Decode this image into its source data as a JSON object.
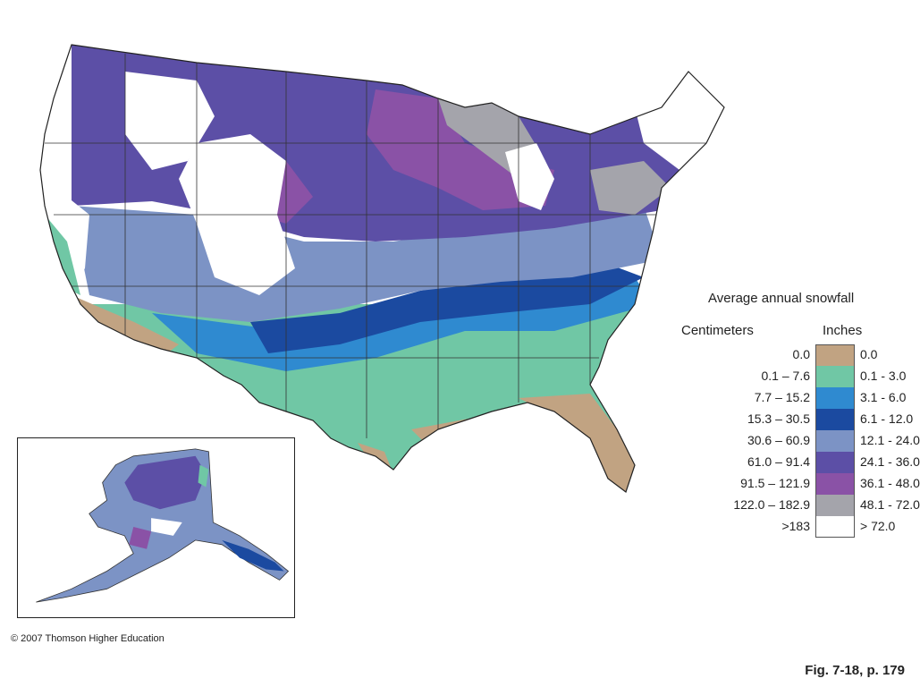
{
  "legend": {
    "title": "Average annual snowfall",
    "cm_header": "Centimeters",
    "in_header": "Inches",
    "classes": [
      {
        "cm": "0.0",
        "in": "0.0",
        "color": "#c1a382"
      },
      {
        "cm": "0.1 – 7.6",
        "in": "0.1 - 3.0",
        "color": "#70c7a5"
      },
      {
        "cm": "7.7 – 15.2",
        "in": "3.1 - 6.0",
        "color": "#2f8ad0"
      },
      {
        "cm": "15.3 – 30.5",
        "in": "6.1 - 12.0",
        "color": "#1b4aa0"
      },
      {
        "cm": "30.6 – 60.9",
        "in": "12.1 - 24.0",
        "color": "#7c93c5"
      },
      {
        "cm": "61.0 – 91.4",
        "in": "24.1 - 36.0",
        "color": "#5c4fa6"
      },
      {
        "cm": "91.5 – 121.9",
        "in": "36.1 - 48.0",
        "color": "#8a52a6"
      },
      {
        "cm": "122.0 – 182.9",
        "in": "48.1 - 72.0",
        "color": "#a4a4ab"
      },
      {
        "cm": ">183",
        "in": "> 72.0",
        "color": "#ffffff"
      }
    ]
  },
  "copyright": "© 2007 Thomson Higher Education",
  "figure_ref": "Fig. 7-18, p. 179"
}
